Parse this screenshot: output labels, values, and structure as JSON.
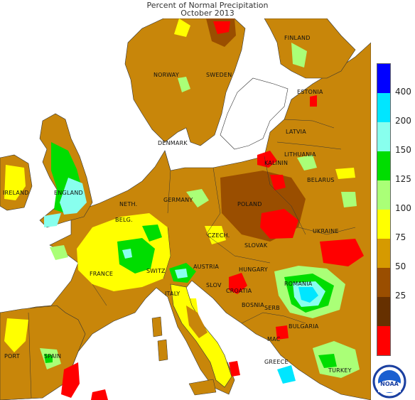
{
  "title": "Percent of Normal Precipitation",
  "subtitle": "October 2013",
  "labels": {
    "finland": "FINLAND",
    "norway": "NORWAY",
    "sweden": "SWEDEN",
    "estonia": "ESTONIA",
    "latvia": "LATVIA",
    "lithuania": "LITHUANIA",
    "kalinin": "KALININ",
    "belarus": "BELARUS",
    "denmark": "DENMARK",
    "ireland": "IRELAND",
    "england": "ENGLAND",
    "neth": "NETH.",
    "belg": "BELG.",
    "germany": "GERMANY",
    "poland": "POLAND",
    "ukraine": "UKRAINE",
    "czech": "CZECH.",
    "slovak": "SLOVAK",
    "france": "FRANCE",
    "switz": "SWITZ",
    "austria": "AUSTRIA",
    "hungary": "HUNGARY",
    "romania": "ROMANIA",
    "slov": "SLOV",
    "croatia": "CROATIA",
    "bosnia": "BOSNIA",
    "serb": "SERB",
    "bulgaria": "BULGARIA",
    "italy": "ITALY",
    "port": "PORT",
    "spain": "SPAIN",
    "mac": "MAC",
    "greece": "GREECE",
    "turkey": "TURKEY"
  },
  "legend": {
    "ticks": [
      "400",
      "200",
      "150",
      "125",
      "100",
      "75",
      "50",
      "25"
    ],
    "colors": [
      "#0000ff",
      "#00e6ff",
      "#88ffee",
      "#00dd00",
      "#aaff77",
      "#ffff00",
      "#d69a00",
      "#9a4e00",
      "#663000",
      "#ff0000"
    ]
  },
  "logo": "NOAA"
}
